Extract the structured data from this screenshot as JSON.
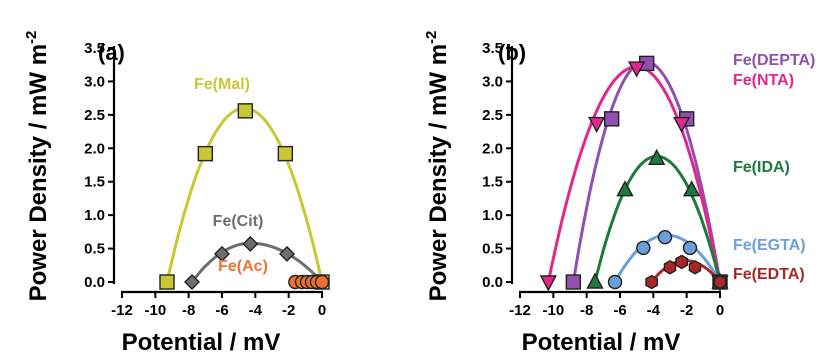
{
  "chart_data": [
    {
      "type": "scatter",
      "panel_label": "(a)",
      "xlabel": "Potential / mV",
      "ylabel": "Power Density / mW m",
      "ylabel_superscript": "-2",
      "xlim": [
        -12,
        0
      ],
      "ylim": [
        0,
        3.5
      ],
      "xticks": [
        -12,
        -10,
        -8,
        -6,
        -4,
        -2,
        0
      ],
      "yticks": [
        0.0,
        0.5,
        1.0,
        1.5,
        2.0,
        2.5,
        3.0,
        3.5
      ],
      "xtick_labels": [
        "-12",
        "-10",
        "-8",
        "-6",
        "-4",
        "-2",
        "0"
      ],
      "ytick_labels": [
        "0.0",
        "0.5",
        "1.0",
        "1.5",
        "2.0",
        "2.5",
        "3.0",
        "3.5"
      ],
      "series": [
        {
          "name": "Fe(Mal)",
          "color": "#c8c832",
          "marker": "square",
          "x": [
            -9.3,
            -7.0,
            -4.6,
            -2.2,
            0.0
          ],
          "y": [
            0.0,
            1.92,
            2.56,
            1.92,
            0.0
          ],
          "fit_vertex": [
            -4.65,
            2.6
          ]
        },
        {
          "name": "Fe(Cit)",
          "color": "#6e6e6e",
          "marker": "diamond",
          "x": [
            -7.8,
            -6.0,
            -4.3,
            -2.1,
            0.0
          ],
          "y": [
            0.0,
            0.42,
            0.57,
            0.42,
            0.0
          ],
          "fit_vertex": [
            -4.3,
            0.58
          ]
        },
        {
          "name": "Fe(Ac)",
          "color": "#f07030",
          "marker": "circle",
          "x": [
            -1.6,
            -1.2,
            -0.9,
            -0.6,
            -0.3,
            0.0
          ],
          "y": [
            0.0,
            0.0,
            0.0,
            0.0,
            0.0,
            0.0
          ]
        }
      ]
    },
    {
      "type": "scatter",
      "panel_label": "(b)",
      "xlabel": "Potential / mV",
      "ylabel": "Power Density / mW m",
      "ylabel_superscript": "-2",
      "xlim": [
        -12,
        0
      ],
      "ylim": [
        0,
        3.5
      ],
      "xticks": [
        -12,
        -10,
        -8,
        -6,
        -4,
        -2,
        0
      ],
      "yticks": [
        0.0,
        0.5,
        1.0,
        1.5,
        2.0,
        2.5,
        3.0,
        3.5
      ],
      "xtick_labels": [
        "-12",
        "-10",
        "-8",
        "-6",
        "-4",
        "-2",
        "0"
      ],
      "ytick_labels": [
        "0.0",
        "0.5",
        "1.0",
        "1.5",
        "2.0",
        "2.5",
        "3.0",
        "3.5"
      ],
      "series": [
        {
          "name": "Fe(DEPTA)",
          "color": "#9050b0",
          "marker": "square",
          "x": [
            -8.8,
            -6.5,
            -4.4,
            -2.0,
            0.0
          ],
          "y": [
            0.0,
            2.44,
            3.27,
            2.44,
            0.0
          ],
          "fit_vertex": [
            -4.5,
            3.3
          ]
        },
        {
          "name": "Fe(NTA)",
          "color": "#e0288c",
          "marker": "triangle-down",
          "x": [
            -10.3,
            -7.4,
            -5.0,
            -2.3,
            0.0
          ],
          "y": [
            0.0,
            2.37,
            3.2,
            2.37,
            0.0
          ],
          "fit_vertex": [
            -5.0,
            3.22
          ]
        },
        {
          "name": "Fe(IDA)",
          "color": "#1e7a3c",
          "marker": "triangle-up",
          "x": [
            -7.5,
            -5.7,
            -3.8,
            -1.7,
            0.0
          ],
          "y": [
            0.0,
            1.38,
            1.85,
            1.38,
            0.0
          ],
          "fit_vertex": [
            -3.8,
            1.88
          ]
        },
        {
          "name": "Fe(EGTA)",
          "color": "#6a9fd8",
          "marker": "circle",
          "x": [
            -6.3,
            -4.6,
            -3.3,
            -1.8,
            0.0
          ],
          "y": [
            0.0,
            0.51,
            0.67,
            0.51,
            0.0
          ],
          "fit_vertex": [
            -3.2,
            0.7
          ]
        },
        {
          "name": "Fe(EDTA)",
          "color": "#a82828",
          "marker": "hexagon",
          "x": [
            -4.1,
            -3.0,
            -2.3,
            -1.5,
            0.0
          ],
          "y": [
            0.0,
            0.22,
            0.3,
            0.22,
            0.0
          ],
          "fit_vertex": [
            -2.1,
            0.32
          ]
        }
      ]
    }
  ]
}
